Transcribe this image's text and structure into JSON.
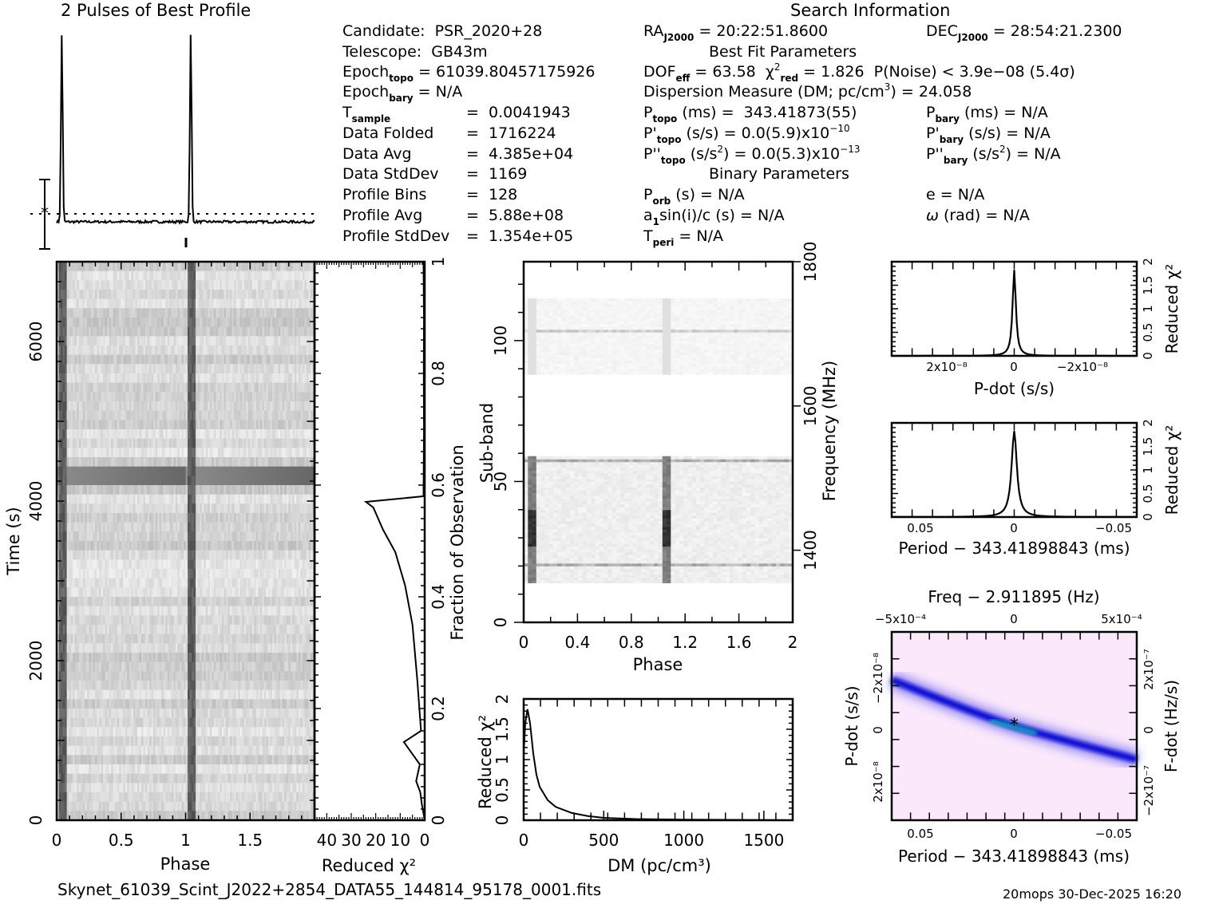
{
  "header": {
    "profile_title": "2 Pulses of Best Profile",
    "search_title": "Search Information",
    "candidate_label": "Candidate:",
    "candidate": "PSR_2020+28",
    "telescope_label": "Telescope:",
    "telescope": "GB43m",
    "epoch_topo": "61039.80457175926",
    "epoch_bary": "N/A",
    "t_sample": "0.0041943",
    "data_folded": "1716224",
    "data_avg": "4.385e+04",
    "data_stddev": "1169",
    "profile_bins": "128",
    "profile_avg": "5.88e+08",
    "profile_stddev": "1.354e+05",
    "ra": "20:22:51.8600",
    "dec": "28:54:21.2300",
    "best_fit_title": "Best Fit Parameters",
    "dof_eff": "63.58",
    "chi2_red": "1.826",
    "p_noise": "P(Noise) < 3.9e−08   (5.4σ)",
    "dm_line": "Dispersion Measure (DM; pc/cm",
    "dm_value": ") = 24.058",
    "p_topo": "343.41873(55)",
    "pd_topo": "0.0(5.9)x10",
    "pd_topo_exp": "−10",
    "pdd_topo": "0.0(5.3)x10",
    "pdd_topo_exp": "−13",
    "p_bary": "N/A",
    "pd_bary": "N/A",
    "pdd_bary": "N/A",
    "binary_title": "Binary Parameters",
    "p_orb": "N/A",
    "a1sini": "N/A",
    "t_peri": "N/A",
    "e": "N/A",
    "omega": "N/A"
  },
  "footer": {
    "filename": "Skynet_61039_Scint_J2022+2854_DATA55_144814_95178_0001.fits",
    "stamp": "20mops 30-Dec-2025 16:20"
  },
  "chart_data": [
    {
      "id": "profile",
      "type": "line",
      "title": "2 Pulses of Best Profile",
      "xlabel": "",
      "ylabel": "",
      "xlim": [
        0,
        2
      ],
      "peak_phases": [
        0.04,
        1.04
      ],
      "baseline": 0.07,
      "peak": 1.0
    },
    {
      "id": "time-phase",
      "type": "heatmap",
      "xlabel": "Phase",
      "ylabel": "Time (s)",
      "xlim": [
        0,
        2
      ],
      "ylim": [
        0,
        7000
      ],
      "xticks": [
        "0",
        "0.5",
        "1",
        "1.5"
      ],
      "yticks": [
        "0",
        "2000",
        "4000",
        "6000"
      ],
      "pulse_phases": [
        0.04,
        1.04
      ],
      "bright_band_time": [
        4150,
        4350
      ]
    },
    {
      "id": "chi2-vs-fraction",
      "type": "line",
      "xlabel": "Reduced χ²",
      "ylabel": "Fraction of Observation",
      "xlim": [
        45,
        0
      ],
      "ylim": [
        0,
        1
      ],
      "xticks": [
        "40",
        "30",
        "20",
        "10",
        "0"
      ],
      "yticks": [
        "0",
        "0.2",
        "0.4",
        "0.6",
        "0.8",
        "1"
      ],
      "points": [
        [
          0,
          0
        ],
        [
          1.2,
          0.03
        ],
        [
          1.8,
          0.05
        ],
        [
          3.5,
          0.07
        ],
        [
          2,
          0.1
        ],
        [
          8.5,
          0.14
        ],
        [
          1.5,
          0.16
        ],
        [
          3,
          0.25
        ],
        [
          5,
          0.35
        ],
        [
          8,
          0.42
        ],
        [
          12,
          0.48
        ],
        [
          17,
          0.52
        ],
        [
          21,
          0.56
        ],
        [
          24,
          0.57
        ],
        [
          0.5,
          0.58
        ],
        [
          0.3,
          0.7
        ],
        [
          0.4,
          0.8
        ],
        [
          0.3,
          0.9
        ],
        [
          0.4,
          0.94
        ],
        [
          0.5,
          1.0
        ]
      ]
    },
    {
      "id": "subband-phase",
      "type": "heatmap",
      "xlabel": "Phase",
      "ylabel": "Sub-band",
      "y2label": "Frequency (MHz)",
      "xlim": [
        0,
        2
      ],
      "ylim": [
        0,
        128
      ],
      "xticks": [
        "0",
        "0.4",
        "0.8",
        "1.2",
        "1.6",
        "2"
      ],
      "yticks": [
        "0",
        "50",
        "100"
      ],
      "y2ticks": [
        "1400",
        "1600",
        "1800"
      ],
      "data_bands": [
        [
          14,
          58
        ],
        [
          88,
          114
        ]
      ],
      "pulse_phases": [
        0.04,
        1.04
      ]
    },
    {
      "id": "dm-curve",
      "type": "line",
      "xlabel": "DM (pc/cm³)",
      "ylabel": "Reduced χ²",
      "xlim": [
        0,
        1680
      ],
      "ylim": [
        0,
        2
      ],
      "xticks": [
        "0",
        "500",
        "1000",
        "1500"
      ],
      "yticks": [
        "0",
        "0.5",
        "1",
        "1.5",
        "2"
      ],
      "points": [
        [
          0,
          1.1
        ],
        [
          10,
          1.6
        ],
        [
          24,
          1.83
        ],
        [
          40,
          1.6
        ],
        [
          60,
          1.1
        ],
        [
          80,
          0.75
        ],
        [
          100,
          0.55
        ],
        [
          150,
          0.33
        ],
        [
          200,
          0.22
        ],
        [
          300,
          0.12
        ],
        [
          400,
          0.07
        ],
        [
          500,
          0.04
        ],
        [
          700,
          0.02
        ],
        [
          1000,
          0.01
        ],
        [
          1680,
          0.0
        ]
      ]
    },
    {
      "id": "pdot-curve",
      "type": "line",
      "xlabel": "P-dot (s/s)",
      "ylabel": "Reduced χ²",
      "xlim": [
        3.6e-08,
        -3.6e-08
      ],
      "ylim": [
        0,
        2
      ],
      "xticks": [
        "2x10⁻⁸",
        "0",
        "−2x10⁻⁸"
      ],
      "yticks": [
        "0",
        "0.5",
        "1",
        "1.5",
        "2"
      ],
      "peak": 1.826
    },
    {
      "id": "period-curve",
      "type": "line",
      "xlabel": "Period − 343.41898843 (ms)",
      "ylabel": "Reduced χ²",
      "xlim": [
        0.066,
        -0.066
      ],
      "ylim": [
        0,
        2
      ],
      "xticks": [
        "0.05",
        "0",
        "−0.05"
      ],
      "yticks": [
        "0",
        "0.5",
        "1",
        "1.5",
        "2"
      ],
      "peak": 1.826
    },
    {
      "id": "p-pdot-plane",
      "type": "heatmap",
      "title": "Freq − 2.911895 (Hz)",
      "xlabel": "Period − 343.41898843 (ms)",
      "ylabel": "P-dot (s/s)",
      "y2label": "F-dot (Hz/s)",
      "xticks": [
        "0.05",
        "0",
        "−0.05"
      ],
      "x2ticks": [
        "−5x10⁻⁴",
        "0",
        "5x10⁻⁴"
      ],
      "yticks": [
        "−2x10⁻⁸",
        "0",
        "2x10⁻⁸"
      ],
      "y2ticks": [
        "2x10⁻⁷",
        "0",
        "−2x10⁻⁷"
      ],
      "colors": {
        "background": "#fbe8fb",
        "band": "#0a0ad8",
        "core": "#00e0a0"
      }
    }
  ]
}
